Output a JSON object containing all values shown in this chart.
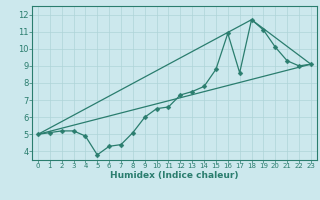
{
  "xlabel": "Humidex (Indice chaleur)",
  "ylabel": "",
  "bg_color": "#cce8ed",
  "line_color": "#2a7d6e",
  "grid_color": "#afd4d8",
  "xlim": [
    -0.5,
    23.5
  ],
  "ylim": [
    3.5,
    12.5
  ],
  "xticks": [
    0,
    1,
    2,
    3,
    4,
    5,
    6,
    7,
    8,
    9,
    10,
    11,
    12,
    13,
    14,
    15,
    16,
    17,
    18,
    19,
    20,
    21,
    22,
    23
  ],
  "yticks": [
    4,
    5,
    6,
    7,
    8,
    9,
    10,
    11,
    12
  ],
  "line1_x": [
    0,
    1,
    2,
    3,
    4,
    5,
    6,
    7,
    8,
    9,
    10,
    11,
    12,
    13,
    14,
    15,
    16,
    17,
    18,
    19,
    20,
    21,
    22,
    23
  ],
  "line1_y": [
    5.0,
    5.1,
    5.2,
    5.2,
    4.9,
    3.8,
    4.3,
    4.4,
    5.1,
    6.0,
    6.5,
    6.6,
    7.3,
    7.5,
    7.8,
    8.8,
    10.9,
    8.6,
    11.7,
    11.1,
    10.1,
    9.3,
    9.0,
    9.1
  ],
  "line2_x": [
    0,
    23
  ],
  "line2_y": [
    5.0,
    9.1
  ],
  "line3_x": [
    0,
    18,
    23
  ],
  "line3_y": [
    5.0,
    11.7,
    9.1
  ],
  "xlabel_fontsize": 6.5,
  "tick_fontsize_x": 5.0,
  "tick_fontsize_y": 6.0
}
